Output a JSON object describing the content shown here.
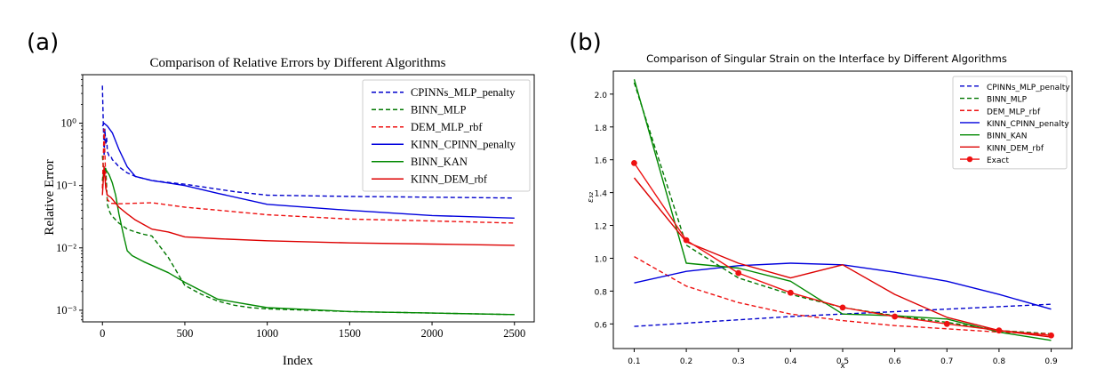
{
  "panels": [
    {
      "letter": "(a)",
      "font": "serif",
      "chart_data": {
        "type": "line",
        "title": "Comparison of Relative Errors by Different Algorithms",
        "xlabel": "Index",
        "ylabel": "Relative Error",
        "xlim": [
          -120,
          2620
        ],
        "ylim": [
          0.00065,
          6
        ],
        "yscale": "log",
        "xticks": [
          0,
          500,
          1000,
          1500,
          2000,
          2500
        ],
        "xtick_labels": [
          "0",
          "500",
          "1000",
          "1500",
          "2000",
          "2500"
        ],
        "yticks": [
          0.001,
          0.01,
          0.1,
          1
        ],
        "ytick_labels": [
          "10⁻³",
          "10⁻²",
          "10⁻¹",
          "10⁰"
        ],
        "grid": false,
        "legend_position": "top-right",
        "series": [
          {
            "name": "CPINNs_MLP_penalty",
            "color": "#0000cc",
            "dash": "dashed",
            "x": [
              0,
              5,
              10,
              15,
              20,
              25,
              30,
              40,
              50,
              60,
              80,
              100,
              150,
              200,
              300,
              500,
              800,
              1000,
              1500,
              2000,
              2500
            ],
            "y": [
              4.0,
              1.0,
              0.3,
              0.8,
              0.45,
              0.6,
              0.35,
              0.3,
              0.3,
              0.26,
              0.23,
              0.2,
              0.16,
              0.14,
              0.12,
              0.105,
              0.08,
              0.07,
              0.067,
              0.065,
              0.063
            ]
          },
          {
            "name": "BINN_MLP",
            "color": "#007700",
            "dash": "dashed",
            "x": [
              0,
              10,
              20,
              30,
              40,
              50,
              70,
              100,
              150,
              200,
              250,
              300,
              400,
              500,
              600,
              700,
              800,
              900,
              1000,
              1500,
              2000,
              2500
            ],
            "y": [
              0.3,
              0.15,
              0.2,
              0.05,
              0.04,
              0.035,
              0.03,
              0.025,
              0.02,
              0.018,
              0.0165,
              0.0155,
              0.007,
              0.0025,
              0.0018,
              0.0014,
              0.0012,
              0.0011,
              0.00105,
              0.00095,
              0.0009,
              0.00085
            ]
          },
          {
            "name": "DEM_MLP_rbf",
            "color": "#ee1111",
            "dash": "dashed",
            "x": [
              0,
              10,
              20,
              30,
              50,
              100,
              200,
              300,
              500,
              800,
              1000,
              1500,
              2000,
              2500
            ],
            "y": [
              0.09,
              0.8,
              0.12,
              0.06,
              0.052,
              0.051,
              0.052,
              0.053,
              0.045,
              0.038,
              0.034,
              0.029,
              0.027,
              0.025
            ]
          },
          {
            "name": "KINN_CPINN_penalty",
            "color": "#0000dd",
            "dash": "solid",
            "x": [
              0,
              10,
              30,
              60,
              100,
              150,
              200,
              300,
              400,
              500,
              700,
              1000,
              1500,
              2000,
              2500
            ],
            "y": [
              0.9,
              1.0,
              0.9,
              0.7,
              0.38,
              0.2,
              0.14,
              0.12,
              0.11,
              0.1,
              0.075,
              0.05,
              0.04,
              0.033,
              0.03
            ]
          },
          {
            "name": "BINN_KAN",
            "color": "#008800",
            "dash": "solid",
            "x": [
              0,
              10,
              20,
              40,
              60,
              80,
              100,
              130,
              150,
              180,
              250,
              400,
              500,
              700,
              1000,
              1500,
              2000,
              2500
            ],
            "y": [
              0.12,
              0.17,
              0.18,
              0.15,
              0.11,
              0.07,
              0.035,
              0.015,
              0.009,
              0.0075,
              0.006,
              0.004,
              0.0028,
              0.0015,
              0.0011,
              0.00095,
              0.0009,
              0.00085
            ]
          },
          {
            "name": "KINN_DEM_rbf",
            "color": "#dd0000",
            "dash": "solid",
            "x": [
              0,
              10,
              20,
              30,
              50,
              100,
              150,
              200,
              300,
              400,
              500,
              700,
              1000,
              1500,
              2000,
              2500
            ],
            "y": [
              0.07,
              0.2,
              0.09,
              0.07,
              0.065,
              0.045,
              0.035,
              0.028,
              0.02,
              0.018,
              0.015,
              0.014,
              0.013,
              0.012,
              0.0115,
              0.011
            ]
          }
        ]
      }
    },
    {
      "letter": "(b)",
      "font": "sans",
      "chart_data": {
        "type": "line",
        "title": "Comparison of Singular Strain on the Interface by Different Algorithms",
        "xlabel": "x",
        "ylabel": "ε₃₂",
        "xlim": [
          0.06,
          0.94
        ],
        "ylim": [
          0.45,
          2.14
        ],
        "yscale": "linear",
        "xticks": [
          0.1,
          0.2,
          0.3,
          0.4,
          0.5,
          0.6,
          0.7,
          0.8,
          0.9
        ],
        "xtick_labels": [
          "0.1",
          "0.2",
          "0.3",
          "0.4",
          "0.5",
          "0.6",
          "0.7",
          "0.8",
          "0.9"
        ],
        "yticks": [
          0.6,
          0.8,
          1.0,
          1.2,
          1.4,
          1.6,
          1.8,
          2.0
        ],
        "ytick_labels": [
          "0.6",
          "0.8",
          "1.0",
          "1.2",
          "1.4",
          "1.6",
          "1.8",
          "2.0"
        ],
        "grid": false,
        "legend_position": "top-right",
        "series": [
          {
            "name": "CPINNs_MLP_penalty",
            "color": "#0000cc",
            "dash": "dashed",
            "marker": false,
            "x": [
              0.1,
              0.2,
              0.3,
              0.4,
              0.5,
              0.6,
              0.7,
              0.8,
              0.9
            ],
            "y": [
              0.585,
              0.605,
              0.625,
              0.645,
              0.66,
              0.675,
              0.69,
              0.705,
              0.72
            ]
          },
          {
            "name": "BINN_MLP",
            "color": "#007700",
            "dash": "dashed",
            "marker": false,
            "x": [
              0.1,
              0.2,
              0.3,
              0.4,
              0.5,
              0.6,
              0.7,
              0.8,
              0.9
            ],
            "y": [
              2.07,
              1.08,
              0.88,
              0.78,
              0.7,
              0.65,
              0.61,
              0.56,
              0.54
            ]
          },
          {
            "name": "DEM_MLP_rbf",
            "color": "#ee1111",
            "dash": "dashed",
            "marker": false,
            "x": [
              0.1,
              0.2,
              0.3,
              0.4,
              0.5,
              0.6,
              0.7,
              0.8,
              0.9
            ],
            "y": [
              1.01,
              0.83,
              0.73,
              0.66,
              0.62,
              0.59,
              0.57,
              0.55,
              0.54
            ]
          },
          {
            "name": "KINN_CPINN_penalty",
            "color": "#0000dd",
            "dash": "solid",
            "marker": false,
            "x": [
              0.1,
              0.2,
              0.3,
              0.4,
              0.5,
              0.6,
              0.7,
              0.8,
              0.9
            ],
            "y": [
              0.85,
              0.92,
              0.955,
              0.97,
              0.96,
              0.915,
              0.86,
              0.78,
              0.69
            ]
          },
          {
            "name": "BINN_KAN",
            "color": "#008800",
            "dash": "solid",
            "marker": false,
            "x": [
              0.1,
              0.2,
              0.3,
              0.4,
              0.5,
              0.6,
              0.7,
              0.8,
              0.9
            ],
            "y": [
              2.09,
              0.97,
              0.94,
              0.86,
              0.66,
              0.65,
              0.63,
              0.55,
              0.5
            ]
          },
          {
            "name": "KINN_DEM_rbf",
            "color": "#dd0000",
            "dash": "solid",
            "marker": false,
            "x": [
              0.1,
              0.2,
              0.3,
              0.4,
              0.5,
              0.6,
              0.7,
              0.8,
              0.9
            ],
            "y": [
              1.49,
              1.1,
              0.97,
              0.88,
              0.96,
              0.78,
              0.64,
              0.56,
              0.52
            ]
          },
          {
            "name": "Exact",
            "color": "#ee1111",
            "dash": "solid",
            "marker": true,
            "x": [
              0.1,
              0.2,
              0.3,
              0.4,
              0.5,
              0.6,
              0.7,
              0.8,
              0.9
            ],
            "y": [
              1.58,
              1.11,
              0.91,
              0.79,
              0.7,
              0.645,
              0.6,
              0.56,
              0.53
            ]
          }
        ]
      }
    }
  ]
}
